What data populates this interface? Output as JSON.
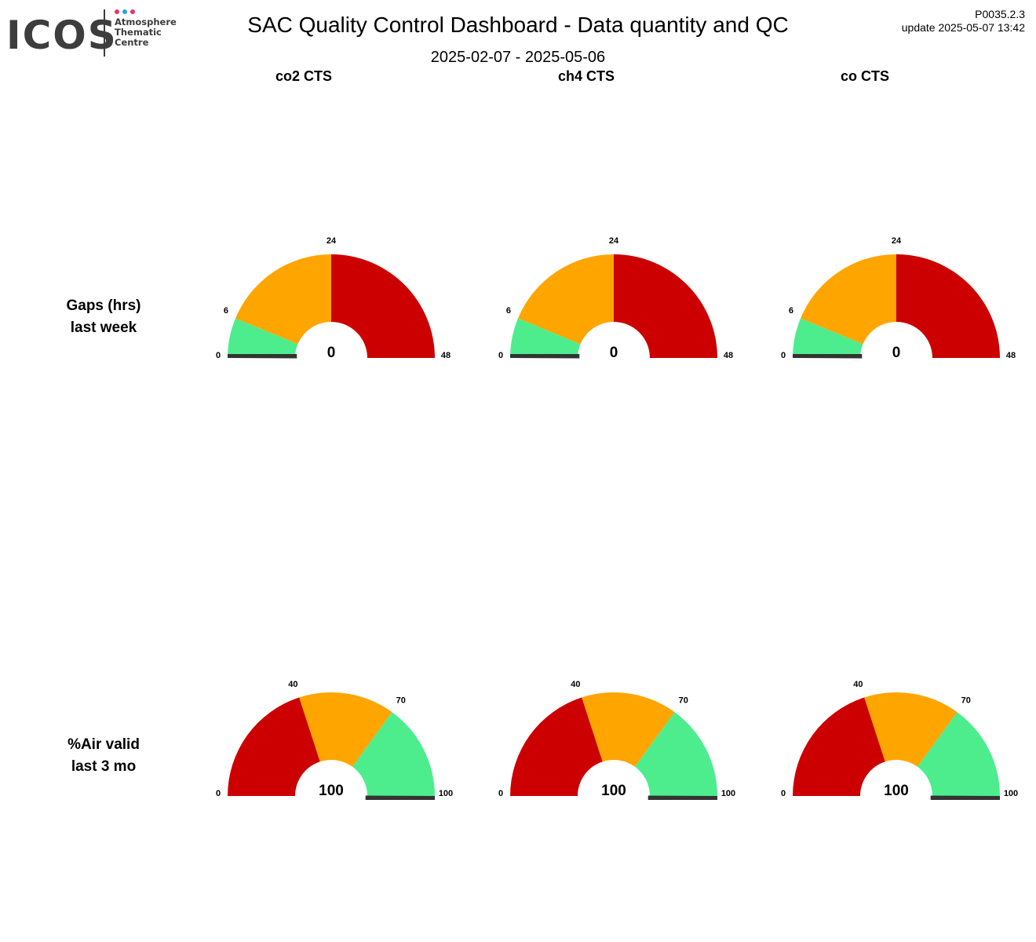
{
  "logo": {
    "wordmark": "ICOS",
    "subtitle": [
      "Atmosphere",
      "Thematic",
      "Centre"
    ],
    "dot_colors": [
      "#e8336d",
      "#2b9fd8",
      "#e8336d"
    ]
  },
  "header": {
    "title": "SAC  Quality Control Dashboard - Data quantity and QC",
    "period": "2025-02-07 - 2025-05-06",
    "version": "P0035.2.3",
    "updated": "update  2025-05-07 13:42"
  },
  "columns": [
    "co2 CTS",
    "ch4 CTS",
    "co CTS"
  ],
  "rows": [
    {
      "title_lines": [
        "Gaps (hrs)",
        "last week"
      ]
    },
    {
      "title_lines": [
        "%Air valid",
        "last 3 mo"
      ]
    }
  ],
  "colors": {
    "green": "#4ded8e",
    "orange": "#ffa500",
    "red": "#cc0000",
    "needle": "#333333"
  },
  "chart_data": [
    {
      "type": "gauge",
      "row": 0,
      "column": "co2 CTS",
      "min": 0,
      "max": 48,
      "bands": [
        {
          "from": 0,
          "to": 6,
          "color": "green"
        },
        {
          "from": 6,
          "to": 24,
          "color": "orange"
        },
        {
          "from": 24,
          "to": 48,
          "color": "red"
        }
      ],
      "ticks": [
        "0",
        "6",
        "24",
        "48"
      ],
      "value": 0,
      "value_label": "0"
    },
    {
      "type": "gauge",
      "row": 0,
      "column": "ch4 CTS",
      "min": 0,
      "max": 48,
      "bands": [
        {
          "from": 0,
          "to": 6,
          "color": "green"
        },
        {
          "from": 6,
          "to": 24,
          "color": "orange"
        },
        {
          "from": 24,
          "to": 48,
          "color": "red"
        }
      ],
      "ticks": [
        "0",
        "6",
        "24",
        "48"
      ],
      "value": 0,
      "value_label": "0"
    },
    {
      "type": "gauge",
      "row": 0,
      "column": "co CTS",
      "min": 0,
      "max": 48,
      "bands": [
        {
          "from": 0,
          "to": 6,
          "color": "green"
        },
        {
          "from": 6,
          "to": 24,
          "color": "orange"
        },
        {
          "from": 24,
          "to": 48,
          "color": "red"
        }
      ],
      "ticks": [
        "0",
        "6",
        "24",
        "48"
      ],
      "value": 0,
      "value_label": "0"
    },
    {
      "type": "gauge",
      "row": 1,
      "column": "co2 CTS",
      "min": 0,
      "max": 100,
      "bands": [
        {
          "from": 0,
          "to": 40,
          "color": "red"
        },
        {
          "from": 40,
          "to": 70,
          "color": "orange"
        },
        {
          "from": 70,
          "to": 100,
          "color": "green"
        }
      ],
      "ticks": [
        "0",
        "40",
        "70",
        "100"
      ],
      "value": 100,
      "value_label": "100"
    },
    {
      "type": "gauge",
      "row": 1,
      "column": "ch4 CTS",
      "min": 0,
      "max": 100,
      "bands": [
        {
          "from": 0,
          "to": 40,
          "color": "red"
        },
        {
          "from": 40,
          "to": 70,
          "color": "orange"
        },
        {
          "from": 70,
          "to": 100,
          "color": "green"
        }
      ],
      "ticks": [
        "0",
        "40",
        "70",
        "100"
      ],
      "value": 100,
      "value_label": "100"
    },
    {
      "type": "gauge",
      "row": 1,
      "column": "co CTS",
      "min": 0,
      "max": 100,
      "bands": [
        {
          "from": 0,
          "to": 40,
          "color": "red"
        },
        {
          "from": 40,
          "to": 70,
          "color": "orange"
        },
        {
          "from": 70,
          "to": 100,
          "color": "green"
        }
      ],
      "ticks": [
        "0",
        "40",
        "70",
        "100"
      ],
      "value": 100,
      "value_label": "100"
    }
  ]
}
